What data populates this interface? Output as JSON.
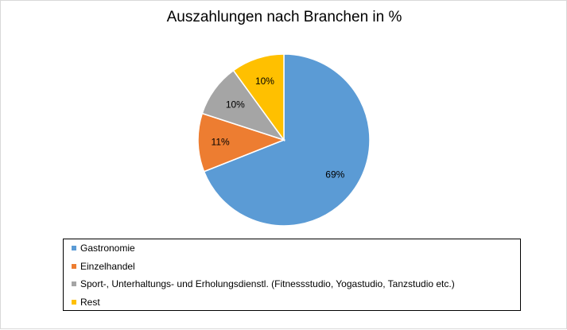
{
  "chart_data": {
    "type": "pie",
    "title": "Auszahlungen nach Branchen in %",
    "slices": [
      {
        "name": "Gastronomie",
        "value": 69,
        "label": "69%",
        "color": "#5b9bd5"
      },
      {
        "name": "Einzelhandel",
        "value": 11,
        "label": "11%",
        "color": "#ed7d31"
      },
      {
        "name": "Sport-, Unterhaltungs- und Erholungsdienstl. (Fitnessstudio, Yogastudio, Tanzstudio etc.)",
        "value": 10,
        "label": "10%",
        "color": "#a5a5a5"
      },
      {
        "name": "Rest",
        "value": 10,
        "label": "10%",
        "color": "#ffc000"
      }
    ],
    "start": "12 o'clock",
    "direction": "clockwise",
    "legend_position": "bottom"
  }
}
